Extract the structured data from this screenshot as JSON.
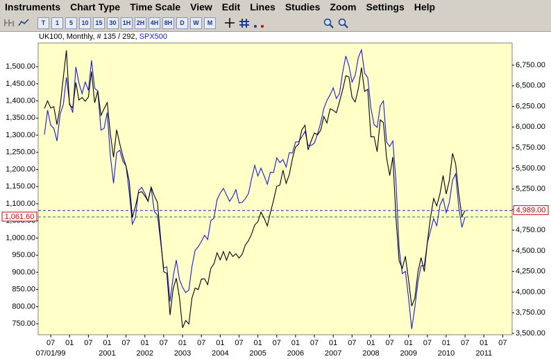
{
  "menu": [
    "Instruments",
    "Chart Type",
    "Time Scale",
    "View",
    "Edit",
    "Lines",
    "Studies",
    "Zoom",
    "Settings",
    "Help"
  ],
  "toolbar": {
    "timeframes": [
      "T",
      "1",
      "5",
      "10",
      "15",
      "30",
      "1H",
      "2H",
      "4H",
      "8H",
      "D",
      "W",
      "M"
    ]
  },
  "chart_data": {
    "type": "line",
    "period_info": ", Monthly, # 135 / 292,",
    "x": [
      "1999-05",
      "1999-06",
      "1999-07",
      "1999-08",
      "1999-09",
      "1999-10",
      "1999-11",
      "1999-12",
      "2000-01",
      "2000-02",
      "2000-03",
      "2000-04",
      "2000-05",
      "2000-06",
      "2000-07",
      "2000-08",
      "2000-09",
      "2000-10",
      "2000-11",
      "2000-12",
      "2001-01",
      "2001-02",
      "2001-03",
      "2001-04",
      "2001-05",
      "2001-06",
      "2001-07",
      "2001-08",
      "2001-09",
      "2001-10",
      "2001-11",
      "2001-12",
      "2002-01",
      "2002-02",
      "2002-03",
      "2002-04",
      "2002-05",
      "2002-06",
      "2002-07",
      "2002-08",
      "2002-09",
      "2002-10",
      "2002-11",
      "2002-12",
      "2003-01",
      "2003-02",
      "2003-03",
      "2003-04",
      "2003-05",
      "2003-06",
      "2003-07",
      "2003-08",
      "2003-09",
      "2003-10",
      "2003-11",
      "2003-12",
      "2004-01",
      "2004-02",
      "2004-03",
      "2004-04",
      "2004-05",
      "2004-06",
      "2004-07",
      "2004-08",
      "2004-09",
      "2004-10",
      "2004-11",
      "2004-12",
      "2005-01",
      "2005-02",
      "2005-03",
      "2005-04",
      "2005-05",
      "2005-06",
      "2005-07",
      "2005-08",
      "2005-09",
      "2005-10",
      "2005-11",
      "2005-12",
      "2006-01",
      "2006-02",
      "2006-03",
      "2006-04",
      "2006-05",
      "2006-06",
      "2006-07",
      "2006-08",
      "2006-09",
      "2006-10",
      "2006-11",
      "2006-12",
      "2007-01",
      "2007-02",
      "2007-03",
      "2007-04",
      "2007-05",
      "2007-06",
      "2007-07",
      "2007-08",
      "2007-09",
      "2007-10",
      "2007-11",
      "2007-12",
      "2008-01",
      "2008-02",
      "2008-03",
      "2008-04",
      "2008-05",
      "2008-06",
      "2008-07",
      "2008-08",
      "2008-09",
      "2008-10",
      "2008-11",
      "2008-12",
      "2009-01",
      "2009-02",
      "2009-03",
      "2009-04",
      "2009-05",
      "2009-06",
      "2009-07",
      "2009-08",
      "2009-09",
      "2009-10",
      "2009-11",
      "2009-12",
      "2010-01",
      "2010-02",
      "2010-03",
      "2010-04",
      "2010-05",
      "2010-06",
      "2010-07"
    ],
    "series": [
      {
        "name": "SPX500",
        "color": "#1a1ad0",
        "axis": "y",
        "line_color": "#1f7a3a",
        "last_label": "1,061.60",
        "values": [
          1302,
          1373,
          1329,
          1320,
          1283,
          1362,
          1389,
          1469,
          1394,
          1366,
          1499,
          1452,
          1421,
          1455,
          1431,
          1518,
          1437,
          1429,
          1315,
          1320,
          1366,
          1240,
          1160,
          1249,
          1256,
          1224,
          1211,
          1134,
          1041,
          1060,
          1139,
          1148,
          1130,
          1107,
          1147,
          1077,
          1067,
          990,
          912,
          916,
          815,
          886,
          936,
          880,
          856,
          841,
          848,
          917,
          964,
          975,
          990,
          1008,
          996,
          1051,
          1058,
          1112,
          1131,
          1145,
          1126,
          1107,
          1121,
          1141,
          1102,
          1104,
          1115,
          1130,
          1174,
          1212,
          1181,
          1204,
          1181,
          1157,
          1192,
          1191,
          1234,
          1220,
          1229,
          1207,
          1249,
          1248,
          1280,
          1281,
          1295,
          1311,
          1270,
          1270,
          1277,
          1304,
          1336,
          1378,
          1401,
          1418,
          1438,
          1407,
          1421,
          1482,
          1531,
          1503,
          1455,
          1474,
          1527,
          1549,
          1481,
          1468,
          1379,
          1331,
          1323,
          1386,
          1400,
          1280,
          1267,
          1283,
          1166,
          969,
          896,
          903,
          826,
          735,
          798,
          873,
          919,
          919,
          987,
          1021,
          1057,
          1036,
          1096,
          1115,
          1074,
          1104,
          1169,
          1187,
          1089,
          1031,
          1061.6
        ]
      },
      {
        "name": "UK100",
        "color": "#000000",
        "axis": "y2",
        "line_color": "#1a1ad0",
        "last_label": "4,989.00",
        "values": [
          6226,
          6318,
          6231,
          6246,
          6030,
          6255,
          6597,
          6930,
          6269,
          6232,
          6540,
          6327,
          6359,
          6313,
          6365,
          6673,
          6294,
          6438,
          6142,
          6222,
          6297,
          5918,
          5634,
          5967,
          5796,
          5643,
          5529,
          5345,
          4903,
          5040,
          5204,
          5217,
          5165,
          5102,
          5272,
          5166,
          5086,
          4656,
          4246,
          4227,
          3722,
          4039,
          4169,
          3940,
          3567,
          3656,
          3613,
          3927,
          4049,
          4031,
          4157,
          4161,
          4091,
          4288,
          4343,
          4477,
          4391,
          4492,
          4386,
          4489,
          4431,
          4464,
          4413,
          4459,
          4571,
          4624,
          4703,
          4814,
          4852,
          4969,
          4894,
          4802,
          4964,
          5113,
          5282,
          5297,
          5478,
          5317,
          5424,
          5619,
          5760,
          5792,
          5965,
          6023,
          5724,
          5833,
          5928,
          5906,
          5961,
          6129,
          6049,
          6221,
          6203,
          6172,
          6308,
          6449,
          6621,
          6608,
          6360,
          6303,
          6467,
          6722,
          6432,
          6457,
          5880,
          5884,
          5702,
          6087,
          6054,
          5626,
          5412,
          5637,
          4902,
          4377,
          4288,
          4434,
          4150,
          3830,
          3926,
          4244,
          4418,
          4249,
          4608,
          4909,
          5134,
          5045,
          5191,
          5413,
          5189,
          5355,
          5680,
          5553,
          5188,
          4917,
          4989
        ]
      }
    ],
    "xlim": [
      "1999-03",
      "2011-10"
    ],
    "xticks": [
      {
        "value": "1999-07",
        "label": "07"
      },
      {
        "value": "2000-01",
        "label": "01"
      },
      {
        "value": "2000-07",
        "label": "07"
      },
      {
        "value": "2001-01",
        "label": "01"
      },
      {
        "value": "2001-07",
        "label": "07"
      },
      {
        "value": "2002-01",
        "label": "01"
      },
      {
        "value": "2002-07",
        "label": "07"
      },
      {
        "value": "2003-01",
        "label": "01"
      },
      {
        "value": "2003-07",
        "label": "07"
      },
      {
        "value": "2004-01",
        "label": "01"
      },
      {
        "value": "2004-07",
        "label": "07"
      },
      {
        "value": "2005-01",
        "label": "01"
      },
      {
        "value": "2005-07",
        "label": "07"
      },
      {
        "value": "2006-01",
        "label": "01"
      },
      {
        "value": "2006-07",
        "label": "07"
      },
      {
        "value": "2007-01",
        "label": "01"
      },
      {
        "value": "2007-07",
        "label": "07"
      },
      {
        "value": "2008-01",
        "label": "01"
      },
      {
        "value": "2008-07",
        "label": "07"
      },
      {
        "value": "2009-01",
        "label": "01"
      },
      {
        "value": "2009-07",
        "label": "07"
      },
      {
        "value": "2010-01",
        "label": "01"
      },
      {
        "value": "2010-07",
        "label": "07"
      },
      {
        "value": "2011-01",
        "label": "01"
      },
      {
        "value": "2011-07",
        "label": "07"
      }
    ],
    "xticks_year": [
      {
        "value": "1999-07",
        "label": "07/01/99"
      },
      {
        "value": "2001-01",
        "label": "2001"
      },
      {
        "value": "2002-01",
        "label": "2002"
      },
      {
        "value": "2003-01",
        "label": "2003"
      },
      {
        "value": "2004-01",
        "label": "2004"
      },
      {
        "value": "2005-01",
        "label": "2005"
      },
      {
        "value": "2006-01",
        "label": "2006"
      },
      {
        "value": "2007-01",
        "label": "2007"
      },
      {
        "value": "2008-01",
        "label": "2008"
      },
      {
        "value": "2009-01",
        "label": "2009"
      },
      {
        "value": "2010-01",
        "label": "2010"
      },
      {
        "value": "2011-01",
        "label": "2011"
      }
    ],
    "ylim": [
      718,
      1569
    ],
    "yticks": [
      {
        "value": 750,
        "label": "750.00"
      },
      {
        "value": 800,
        "label": "800.00"
      },
      {
        "value": 850,
        "label": "850.00"
      },
      {
        "value": 900,
        "label": "900.00"
      },
      {
        "value": 950,
        "label": "950.00"
      },
      {
        "value": 1000,
        "label": "1,000.00"
      },
      {
        "value": 1050,
        "label": "1,050.00"
      },
      {
        "value": 1100,
        "label": "1,100.00"
      },
      {
        "value": 1150,
        "label": "1,150.00"
      },
      {
        "value": 1200,
        "label": "1,200.00"
      },
      {
        "value": 1250,
        "label": "1,250.00"
      },
      {
        "value": 1300,
        "label": "1,300.00"
      },
      {
        "value": 1350,
        "label": "1,350.00"
      },
      {
        "value": 1400,
        "label": "1,400.00"
      },
      {
        "value": 1450,
        "label": "1,450.00"
      },
      {
        "value": 1500,
        "label": "1,500.00"
      }
    ],
    "y2lim": [
      3483,
      7019
    ],
    "y2ticks": [
      {
        "value": 3500,
        "label": "3,500.00"
      },
      {
        "value": 3750,
        "label": "3,750.00"
      },
      {
        "value": 4000,
        "label": "4,000.00"
      },
      {
        "value": 4250,
        "label": "4,250.00"
      },
      {
        "value": 4500,
        "label": "4,500.00"
      },
      {
        "value": 4750,
        "label": "4,750.00"
      },
      {
        "value": 5000,
        "label": "5,000.00"
      },
      {
        "value": 5250,
        "label": "5,250.00"
      },
      {
        "value": 5500,
        "label": "5,500.00"
      },
      {
        "value": 5750,
        "label": "5,750.00"
      },
      {
        "value": 6000,
        "label": "6,000.00"
      },
      {
        "value": 6250,
        "label": "6,250.00"
      },
      {
        "value": 6500,
        "label": "6,500.00"
      },
      {
        "value": 6750,
        "label": "6,750.00"
      }
    ],
    "grid": false,
    "background": "#ffffc8"
  }
}
